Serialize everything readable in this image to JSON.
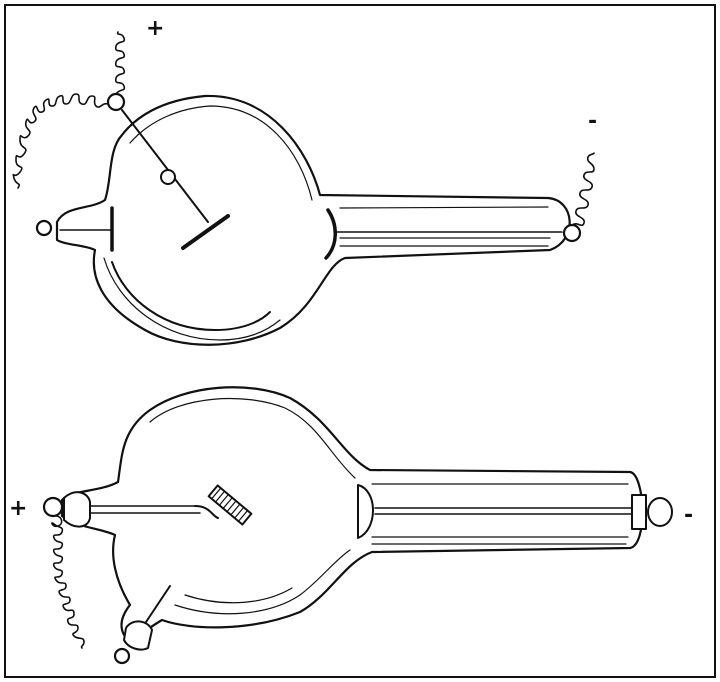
{
  "figure": {
    "tubes": [
      {
        "name": "upper-tube",
        "terminals": [
          {
            "role": "anode",
            "sign": "+"
          },
          {
            "role": "cathode",
            "sign": "-"
          }
        ]
      },
      {
        "name": "lower-tube",
        "terminals": [
          {
            "role": "anode",
            "sign": "+"
          },
          {
            "role": "cathode",
            "sign": "-"
          }
        ]
      }
    ],
    "colors": {
      "ink": "#111111",
      "paper": "#ffffff"
    }
  }
}
